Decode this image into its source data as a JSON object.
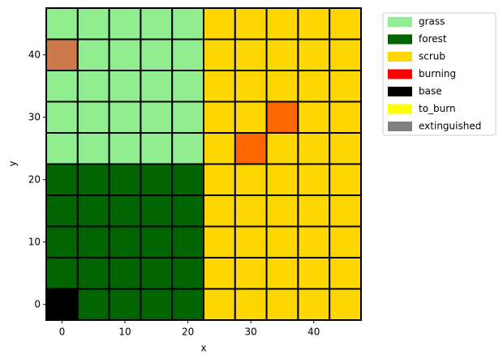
{
  "chart_data": {
    "type": "grid",
    "xlabel": "x",
    "ylabel": "y",
    "x": [
      0,
      5,
      10,
      15,
      20,
      25,
      30,
      35,
      40,
      45
    ],
    "y": [
      0,
      5,
      10,
      15,
      20,
      25,
      30,
      35,
      40,
      45
    ],
    "cell_size": 5,
    "colors": [
      [
        "#000000",
        "#006400",
        "#006400",
        "#006400",
        "#006400",
        "#ffd700",
        "#ffd700",
        "#ffd700",
        "#ffd700",
        "#ffd700"
      ],
      [
        "#006400",
        "#006400",
        "#006400",
        "#006400",
        "#006400",
        "#ffd700",
        "#ffd700",
        "#ffd700",
        "#ffd700",
        "#ffd700"
      ],
      [
        "#006400",
        "#006400",
        "#006400",
        "#006400",
        "#006400",
        "#ffd700",
        "#ffd700",
        "#ffd700",
        "#ffd700",
        "#ffd700"
      ],
      [
        "#006400",
        "#006400",
        "#006400",
        "#006400",
        "#006400",
        "#ffd700",
        "#ffd700",
        "#ffd700",
        "#ffd700",
        "#ffd700"
      ],
      [
        "#006400",
        "#006400",
        "#006400",
        "#006400",
        "#006400",
        "#ffd700",
        "#ffd700",
        "#ffd700",
        "#ffd700",
        "#ffd700"
      ],
      [
        "#90ee90",
        "#90ee90",
        "#90ee90",
        "#90ee90",
        "#90ee90",
        "#ffd700",
        "#ff6600",
        "#ffd700",
        "#ffd700",
        "#ffd700"
      ],
      [
        "#90ee90",
        "#90ee90",
        "#90ee90",
        "#90ee90",
        "#90ee90",
        "#ffd700",
        "#ffd700",
        "#ff6600",
        "#ffd700",
        "#ffd700"
      ],
      [
        "#90ee90",
        "#90ee90",
        "#90ee90",
        "#90ee90",
        "#90ee90",
        "#ffd700",
        "#ffd700",
        "#ffd700",
        "#ffd700",
        "#ffd700"
      ],
      [
        "#cc7a4a",
        "#90ee90",
        "#90ee90",
        "#90ee90",
        "#90ee90",
        "#ffd700",
        "#ffd700",
        "#ffd700",
        "#ffd700",
        "#ffd700"
      ],
      [
        "#90ee90",
        "#90ee90",
        "#90ee90",
        "#90ee90",
        "#90ee90",
        "#ffd700",
        "#ffd700",
        "#ffd700",
        "#ffd700",
        "#ffd700"
      ]
    ],
    "legend": [
      {
        "name": "grass",
        "color": "#90ee90"
      },
      {
        "name": "forest",
        "color": "#006400"
      },
      {
        "name": "scrub",
        "color": "#ffd700"
      },
      {
        "name": "burning",
        "color": "#ff0000"
      },
      {
        "name": "base",
        "color": "#000000"
      },
      {
        "name": "to_burn",
        "color": "#ffff00"
      },
      {
        "name": "extinguished",
        "color": "#808080"
      }
    ],
    "legend_position": "outside upper right",
    "xlim": [
      -2.5,
      47.5
    ],
    "ylim": [
      -2.5,
      47.5
    ],
    "xticks": [
      0,
      10,
      20,
      30,
      40
    ],
    "yticks": [
      0,
      10,
      20,
      30,
      40
    ]
  }
}
